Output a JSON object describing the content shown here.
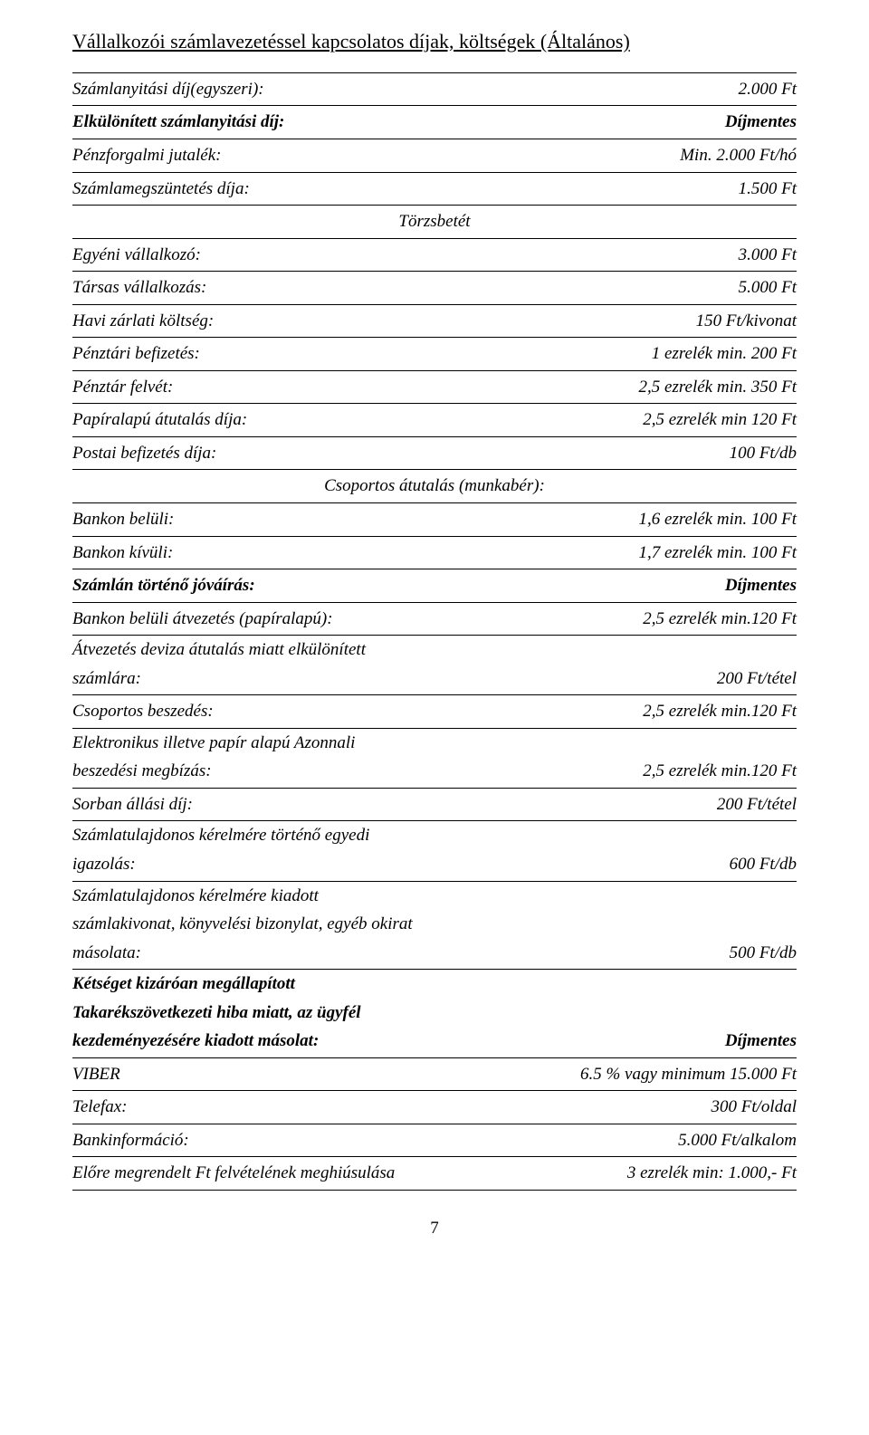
{
  "title": "Vállalkozói számlavezetéssel kapcsolatos díjak, költségek (Általános)",
  "rows1": [
    {
      "label": "Számlanyitási díj(egyszeri):",
      "value": "2.000 Ft",
      "labelClass": "italic",
      "valueClass": "italic"
    },
    {
      "label": "Elkülönített számlanyitási díj:",
      "value": "Díjmentes",
      "labelClass": "bold italic",
      "valueClass": "bold italic"
    },
    {
      "label": "Pénzforgalmi jutalék:",
      "value": "Min. 2.000 Ft/hó",
      "labelClass": "italic",
      "valueClass": "italic"
    },
    {
      "label": "Számlamegszüntetés díja:",
      "value": "1.500 Ft",
      "labelClass": "italic",
      "valueClass": "italic"
    }
  ],
  "heading1": "Törzsbetét",
  "rows2": [
    {
      "label": "Egyéni vállalkozó:",
      "value": "3.000 Ft",
      "labelClass": "italic",
      "valueClass": "italic"
    },
    {
      "label": "Társas vállalkozás:",
      "value": "5.000 Ft",
      "labelClass": "italic",
      "valueClass": "italic"
    },
    {
      "label": "Havi zárlati költség:",
      "value": "150 Ft/kivonat",
      "labelClass": "italic",
      "valueClass": "italic"
    },
    {
      "label": "Pénztári befizetés:",
      "value": "1 ezrelék min. 200 Ft",
      "labelClass": "italic",
      "valueClass": "italic"
    },
    {
      "label": "Pénztár felvét:",
      "value": "2,5 ezrelék min. 350 Ft",
      "labelClass": "italic",
      "valueClass": "italic"
    },
    {
      "label": "Papíralapú átutalás díja:",
      "value": "2,5 ezrelék min 120 Ft",
      "labelClass": "italic",
      "valueClass": "italic"
    },
    {
      "label": "Postai befizetés díja:",
      "value": "100 Ft/db",
      "labelClass": "italic",
      "valueClass": "italic"
    }
  ],
  "heading2": "Csoportos átutalás (munkabér):",
  "rows3": [
    {
      "label": "Bankon belüli:",
      "value": "1,6 ezrelék min. 100 Ft",
      "labelClass": "italic",
      "valueClass": "italic"
    },
    {
      "label": "Bankon kívüli:",
      "value": "1,7 ezrelék min. 100 Ft",
      "labelClass": "italic",
      "valueClass": "italic"
    },
    {
      "label": "Számlán történő jóváírás:",
      "value": "Díjmentes",
      "labelClass": "bold italic",
      "valueClass": "bold italic"
    },
    {
      "label": "Bankon  belüli átvezetés (papíralapú):",
      "value": "2,5 ezrelék min.120 Ft",
      "labelClass": "italic",
      "valueClass": "italic"
    }
  ],
  "multi1": {
    "lines": [
      "Átvezetés deviza átutalás miatt elkülönített"
    ],
    "lastLabel": "számlára:",
    "lastValue": "200 Ft/tétel",
    "labelClass": "italic",
    "valueClass": "italic"
  },
  "rows4": [
    {
      "label": "Csoportos beszedés:",
      "value": "2,5 ezrelék min.120 Ft",
      "labelClass": "italic",
      "valueClass": "italic"
    }
  ],
  "multi2": {
    "lines": [
      "Elektronikus illetve papír alapú Azonnali"
    ],
    "lastLabel": "beszedési megbízás:",
    "lastValue": "2,5 ezrelék min.120 Ft",
    "labelClass": "italic",
    "valueClass": "italic"
  },
  "rows5": [
    {
      "label": "Sorban állási díj:",
      "value": "200 Ft/tétel",
      "labelClass": "italic",
      "valueClass": "italic"
    }
  ],
  "multi3": {
    "lines": [
      "Számlatulajdonos kérelmére történő egyedi"
    ],
    "lastLabel": "igazolás:",
    "lastValue": "600 Ft/db",
    "labelClass": "italic",
    "valueClass": "italic"
  },
  "multi4": {
    "lines": [
      "Számlatulajdonos kérelmére kiadott",
      "számlakivonat, könyvelési bizonylat, egyéb okirat"
    ],
    "lastLabel": "másolata:",
    "lastValue": "500 Ft/db",
    "labelClass": "italic",
    "valueClass": "italic"
  },
  "multi5": {
    "lines": [
      "Kétséget kizáróan megállapított",
      "Takarékszövetkezeti hiba miatt, az ügyfél"
    ],
    "lastLabel": "kezdeményezésére kiadott másolat:",
    "lastValue": "Díjmentes",
    "labelClass": "bold italic",
    "valueClass": "bold italic"
  },
  "rows6": [
    {
      "label": "VIBER",
      "value": "6.5 % vagy minimum 15.000 Ft",
      "labelClass": "italic",
      "valueClass": "italic"
    },
    {
      "label": "Telefax:",
      "value": "300 Ft/oldal",
      "labelClass": "italic",
      "valueClass": "italic"
    },
    {
      "label": "Bankinformáció:",
      "value": "5.000 Ft/alkalom",
      "labelClass": "italic",
      "valueClass": "italic"
    },
    {
      "label": "Előre megrendelt Ft felvételének meghiúsulása",
      "value": "3 ezrelék min: 1.000,- Ft",
      "labelClass": "italic",
      "valueClass": "italic"
    }
  ],
  "pageNumber": "7"
}
